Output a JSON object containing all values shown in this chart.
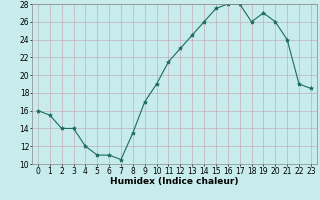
{
  "x": [
    0,
    1,
    2,
    3,
    4,
    5,
    6,
    7,
    8,
    9,
    10,
    11,
    12,
    13,
    14,
    15,
    16,
    17,
    18,
    19,
    20,
    21,
    22,
    23
  ],
  "y": [
    16,
    15.5,
    14,
    14,
    12,
    11,
    11,
    10.5,
    13.5,
    17,
    19,
    21.5,
    23,
    24.5,
    26,
    27.5,
    28,
    28,
    26,
    27,
    26,
    24,
    19,
    18.5
  ],
  "line_color": "#1a6b5e",
  "bg_color": "#c8ecec",
  "grid_color": "#c0a0b0",
  "xlabel": "Humidex (Indice chaleur)",
  "xlabel_fontsize": 6.5,
  "tick_fontsize": 5.5,
  "ylim": [
    10,
    28
  ],
  "yticks": [
    10,
    12,
    14,
    16,
    18,
    20,
    22,
    24,
    26,
    28
  ],
  "xlim": [
    -0.5,
    23.5
  ],
  "xticks": [
    0,
    1,
    2,
    3,
    4,
    5,
    6,
    7,
    8,
    9,
    10,
    11,
    12,
    13,
    14,
    15,
    16,
    17,
    18,
    19,
    20,
    21,
    22,
    23
  ]
}
